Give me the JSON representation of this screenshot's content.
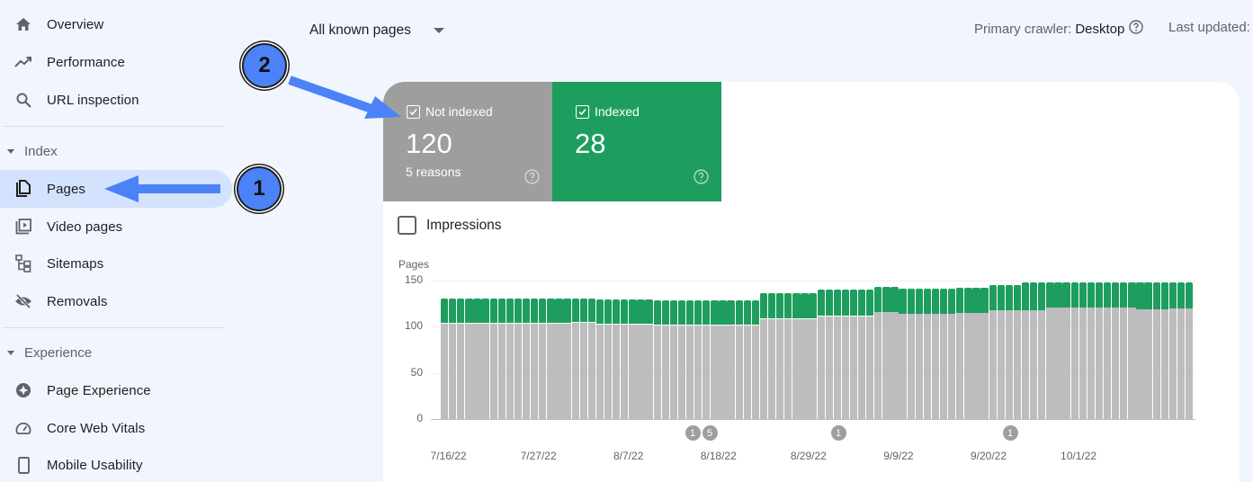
{
  "sidebar": {
    "items": [
      {
        "label": "Overview",
        "icon": "home-icon"
      },
      {
        "label": "Performance",
        "icon": "trending-up-icon"
      },
      {
        "label": "URL inspection",
        "icon": "search-icon"
      },
      {
        "label": "Pages",
        "icon": "pages-icon",
        "active": true
      },
      {
        "label": "Video pages",
        "icon": "video-pages-icon"
      },
      {
        "label": "Sitemaps",
        "icon": "sitemap-icon"
      },
      {
        "label": "Removals",
        "icon": "eye-off-icon"
      },
      {
        "label": "Page Experience",
        "icon": "page-experience-icon"
      },
      {
        "label": "Core Web Vitals",
        "icon": "gauge-icon"
      },
      {
        "label": "Mobile Usability",
        "icon": "smartphone-icon"
      }
    ],
    "sections": {
      "index": "Index",
      "experience": "Experience"
    }
  },
  "header": {
    "filter_value": "All known pages",
    "crawler_label": "Primary crawler:",
    "crawler_value": "Desktop",
    "last_updated_label": "Last updated:"
  },
  "summary": {
    "not_indexed": {
      "label": "Not indexed",
      "value": "120",
      "sub": "5 reasons",
      "color": "#9e9e9e"
    },
    "indexed": {
      "label": "Indexed",
      "value": "28",
      "color": "#1e9e5e"
    }
  },
  "impressions": {
    "label": "Impressions",
    "checked": false
  },
  "annotations": {
    "badge_1": "1",
    "badge_2": "2",
    "arrow_color": "#4c82f7"
  },
  "chart_data": {
    "type": "bar",
    "stacked": true,
    "title": "",
    "ylabel": "Pages",
    "xlabel": "",
    "ylim": [
      0,
      150
    ],
    "yticks": [
      0,
      50,
      100,
      150
    ],
    "xtick_labels": [
      "7/16/22",
      "7/27/22",
      "8/7/22",
      "8/18/22",
      "8/29/22",
      "9/9/22",
      "9/20/22",
      "10/1/22"
    ],
    "x_start": "7/16/22",
    "x_end": "10/11/22",
    "grid": true,
    "legend": [
      "Not indexed",
      "Indexed"
    ],
    "series": [
      {
        "name": "Not indexed",
        "color": "#bdbdbd",
        "segments": [
          {
            "days": 16,
            "value": 104
          },
          {
            "days": 3,
            "value": 105
          },
          {
            "days": 7,
            "value": 103
          },
          {
            "days": 13,
            "value": 102
          },
          {
            "days": 7,
            "value": 109
          },
          {
            "days": 3,
            "value": 112
          },
          {
            "days": 4,
            "value": 112
          },
          {
            "days": 3,
            "value": 116
          },
          {
            "days": 7,
            "value": 114
          },
          {
            "days": 4,
            "value": 115
          },
          {
            "days": 4,
            "value": 118
          },
          {
            "days": 3,
            "value": 118
          },
          {
            "days": 7,
            "value": 121
          },
          {
            "days": 4,
            "value": 121
          },
          {
            "days": 4,
            "value": 119
          },
          {
            "days": 3,
            "value": 120
          }
        ]
      },
      {
        "name": "Indexed",
        "color": "#1e9e5e",
        "segments": [
          {
            "days": 16,
            "value": 27
          },
          {
            "days": 3,
            "value": 26
          },
          {
            "days": 7,
            "value": 27
          },
          {
            "days": 13,
            "value": 27
          },
          {
            "days": 7,
            "value": 27
          },
          {
            "days": 3,
            "value": 28
          },
          {
            "days": 4,
            "value": 28
          },
          {
            "days": 3,
            "value": 27
          },
          {
            "days": 7,
            "value": 27
          },
          {
            "days": 4,
            "value": 27
          },
          {
            "days": 4,
            "value": 27
          },
          {
            "days": 3,
            "value": 30
          },
          {
            "days": 7,
            "value": 27
          },
          {
            "days": 4,
            "value": 27
          },
          {
            "days": 4,
            "value": 29
          },
          {
            "days": 3,
            "value": 28
          }
        ]
      }
    ],
    "event_markers": [
      {
        "label": "1",
        "date": "8/15/22"
      },
      {
        "label": "5",
        "date": "8/17/22"
      },
      {
        "label": "1",
        "date": "8/30/22"
      },
      {
        "label": "1",
        "date": "9/20/22"
      }
    ]
  }
}
